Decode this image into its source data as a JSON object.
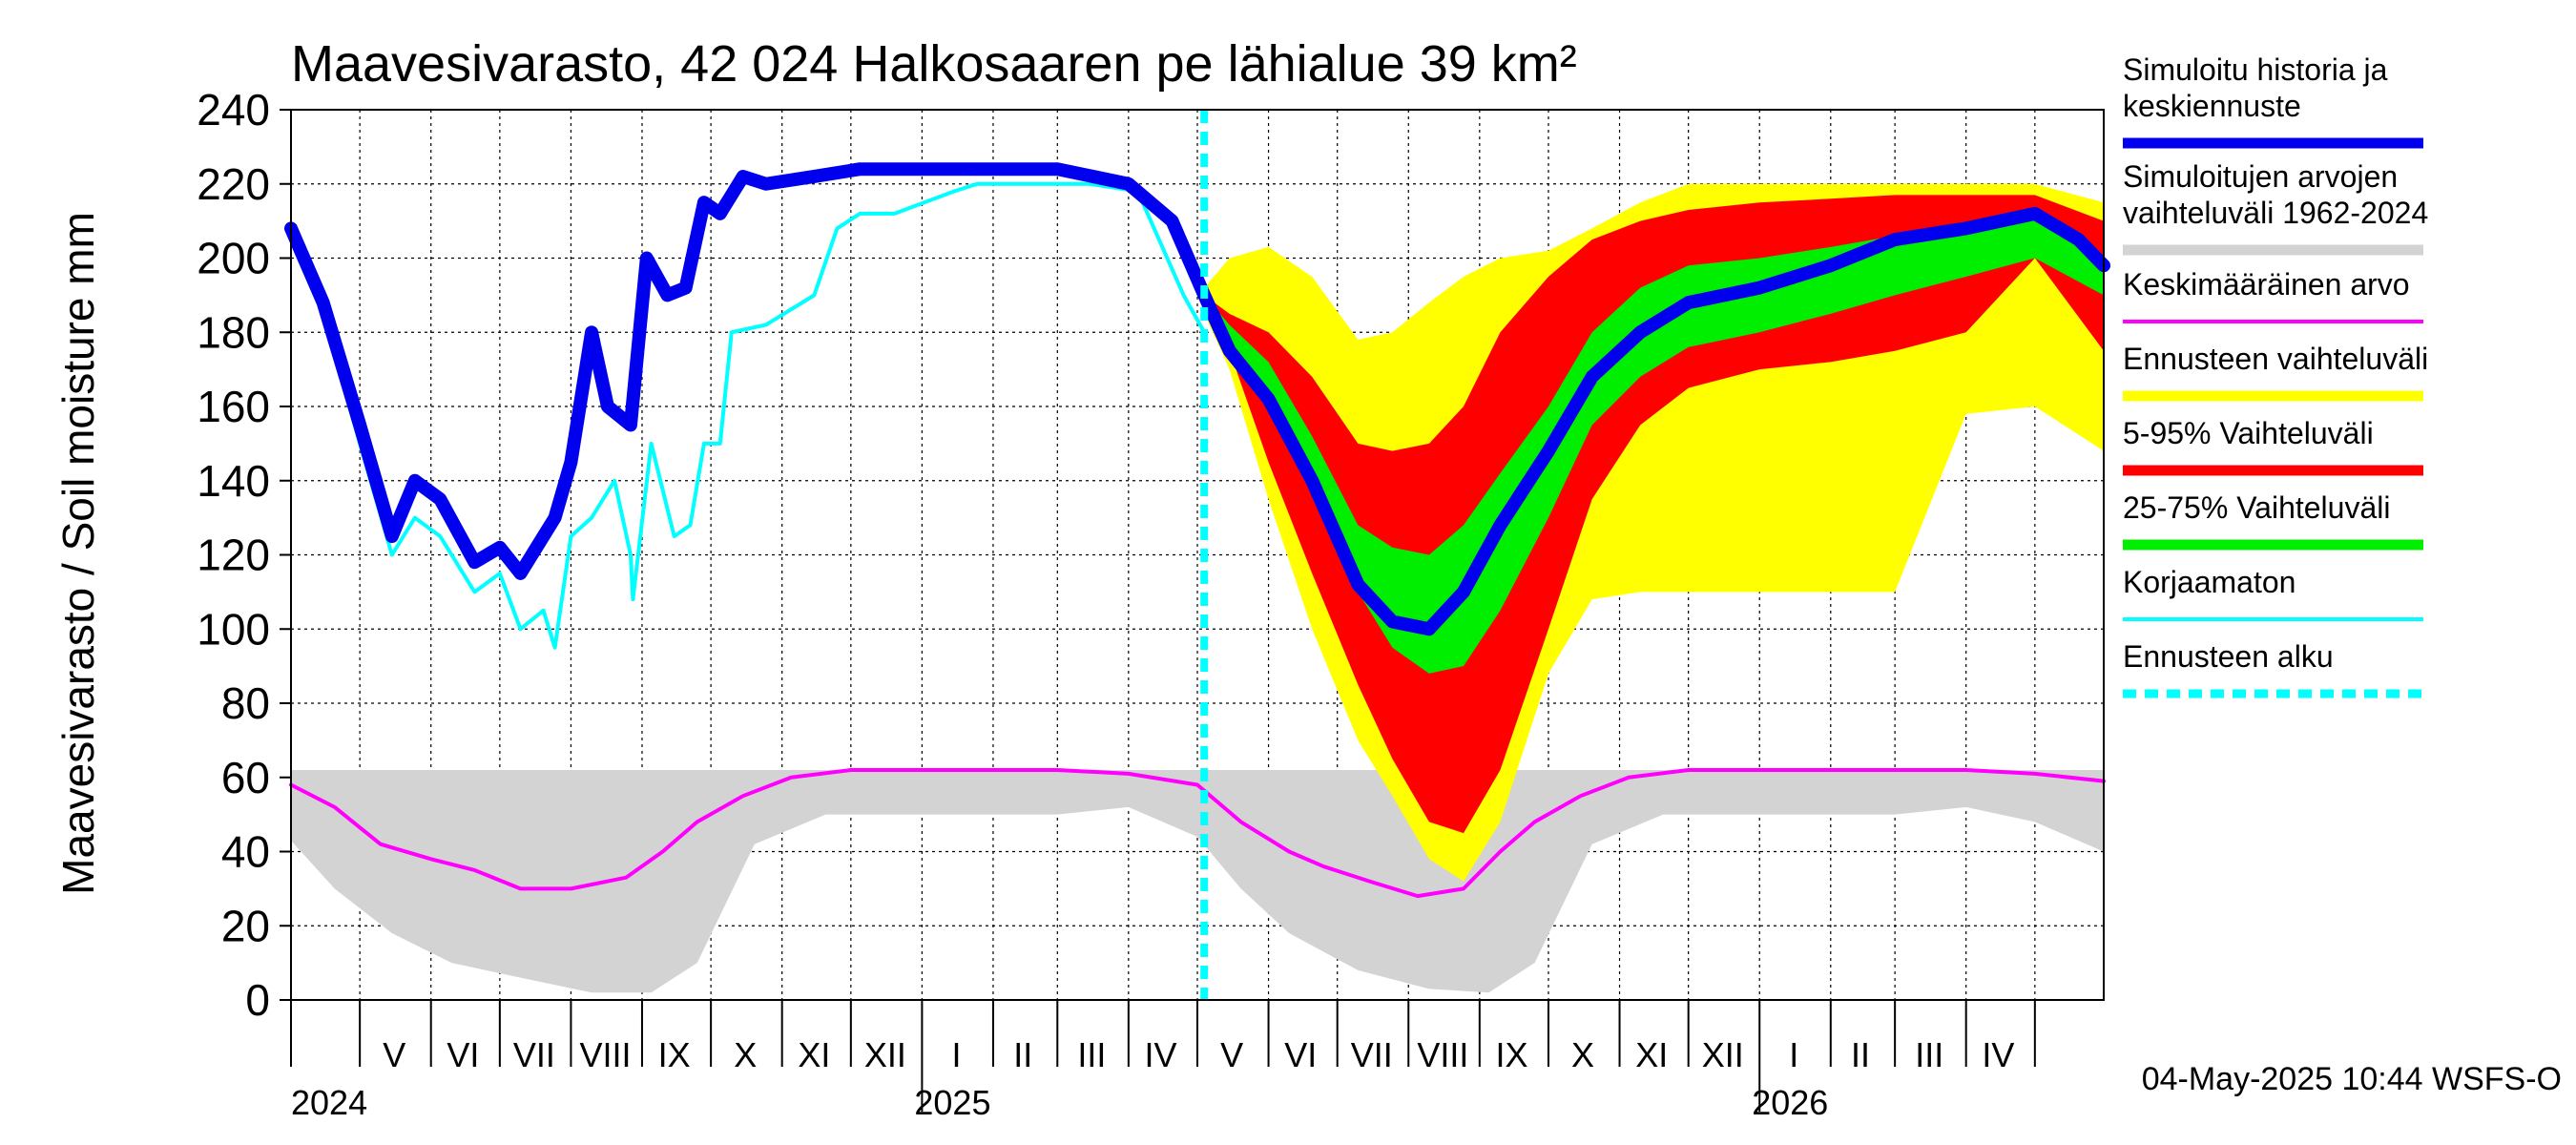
{
  "chart_data": {
    "type": "area",
    "title": "Maavesivarasto, 42 024 Halkosaaren pe lähialue 39 km²",
    "ylabel": "Maavesivarasto / Soil moisture   mm",
    "ylim": [
      0,
      240
    ],
    "yticks": [
      "0",
      "20",
      "40",
      "60",
      "80",
      "100",
      "120",
      "140",
      "160",
      "180",
      "200",
      "220",
      "240"
    ],
    "xlim": [
      "2024-04-01",
      "2026-05-31"
    ],
    "grid": true,
    "forecast_start": "2025-05-04",
    "month_labels": [
      {
        "label": "V",
        "date": "2024-05-16"
      },
      {
        "label": "VI",
        "date": "2024-06-15"
      },
      {
        "label": "VII",
        "date": "2024-07-16"
      },
      {
        "label": "VIII",
        "date": "2024-08-16"
      },
      {
        "label": "IX",
        "date": "2024-09-15"
      },
      {
        "label": "X",
        "date": "2024-10-16"
      },
      {
        "label": "XI",
        "date": "2024-11-15"
      },
      {
        "label": "XII",
        "date": "2024-12-16"
      },
      {
        "label": "I",
        "date": "2025-01-16"
      },
      {
        "label": "II",
        "date": "2025-02-14"
      },
      {
        "label": "III",
        "date": "2025-03-16"
      },
      {
        "label": "IV",
        "date": "2025-04-15"
      },
      {
        "label": "V",
        "date": "2025-05-16"
      },
      {
        "label": "VI",
        "date": "2025-06-15"
      },
      {
        "label": "VII",
        "date": "2025-07-16"
      },
      {
        "label": "VIII",
        "date": "2025-08-16"
      },
      {
        "label": "IX",
        "date": "2025-09-15"
      },
      {
        "label": "X",
        "date": "2025-10-16"
      },
      {
        "label": "XI",
        "date": "2025-11-15"
      },
      {
        "label": "XII",
        "date": "2025-12-16"
      },
      {
        "label": "I",
        "date": "2026-01-16"
      },
      {
        "label": "II",
        "date": "2026-02-14"
      },
      {
        "label": "III",
        "date": "2026-03-16"
      },
      {
        "label": "IV",
        "date": "2026-04-15"
      }
    ],
    "year_labels": [
      {
        "label": "2024",
        "date": "2024-04-01"
      },
      {
        "label": "2025",
        "date": "2025-01-01"
      },
      {
        "label": "2026",
        "date": "2026-01-01"
      }
    ],
    "series": [
      {
        "name": "Simuloitujen arvojen vaihteluväli 1962-2024",
        "kind": "band",
        "color": "#d3d3d3",
        "x": [
          "2024-04-01",
          "2024-04-20",
          "2024-05-15",
          "2024-06-10",
          "2024-07-10",
          "2024-08-10",
          "2024-09-05",
          "2024-09-25",
          "2024-10-20",
          "2024-11-20",
          "2025-01-01",
          "2025-03-01",
          "2025-04-01",
          "2025-05-01",
          "2025-05-20",
          "2025-06-10",
          "2025-07-10",
          "2025-08-10",
          "2025-09-05",
          "2025-09-25",
          "2025-10-20",
          "2025-11-20",
          "2026-01-01",
          "2026-03-01",
          "2026-04-01",
          "2026-05-01",
          "2026-05-31"
        ],
        "lower": [
          43,
          30,
          18,
          10,
          6,
          2,
          2,
          10,
          42,
          50,
          50,
          50,
          52,
          44,
          30,
          18,
          8,
          3,
          2,
          10,
          42,
          50,
          50,
          50,
          52,
          48,
          40
        ],
        "upper": [
          62,
          62,
          62,
          62,
          62,
          62,
          62,
          62,
          62,
          62,
          62,
          62,
          62,
          62,
          62,
          62,
          62,
          62,
          62,
          62,
          62,
          62,
          62,
          62,
          62,
          62,
          62
        ]
      },
      {
        "name": "Ennusteen vaihteluväli",
        "kind": "band",
        "color": "#ffff00",
        "x": [
          "2025-05-04",
          "2025-05-15",
          "2025-06-01",
          "2025-06-20",
          "2025-07-10",
          "2025-07-25",
          "2025-08-10",
          "2025-08-25",
          "2025-09-10",
          "2025-10-01",
          "2025-10-20",
          "2025-11-10",
          "2025-12-01",
          "2026-01-01",
          "2026-02-01",
          "2026-03-01",
          "2026-04-01",
          "2026-05-01",
          "2026-05-31"
        ],
        "lower": [
          185,
          170,
          135,
          100,
          70,
          55,
          38,
          32,
          48,
          88,
          108,
          110,
          110,
          110,
          110,
          110,
          158,
          160,
          148
        ],
        "upper": [
          192,
          200,
          203,
          195,
          178,
          180,
          188,
          195,
          200,
          202,
          208,
          215,
          220,
          220,
          220,
          220,
          220,
          220,
          215
        ]
      },
      {
        "name": "5-95% Vaihteluväli",
        "kind": "band",
        "color": "#ff0000",
        "x": [
          "2025-05-04",
          "2025-05-15",
          "2025-06-01",
          "2025-06-20",
          "2025-07-10",
          "2025-07-25",
          "2025-08-10",
          "2025-08-25",
          "2025-09-10",
          "2025-10-01",
          "2025-10-20",
          "2025-11-10",
          "2025-12-01",
          "2026-01-01",
          "2026-02-01",
          "2026-03-01",
          "2026-04-01",
          "2026-05-01",
          "2026-05-31"
        ],
        "lower": [
          188,
          175,
          145,
          115,
          85,
          65,
          48,
          45,
          62,
          100,
          135,
          155,
          165,
          170,
          172,
          175,
          180,
          200,
          175
        ],
        "upper": [
          190,
          185,
          180,
          168,
          150,
          148,
          150,
          160,
          180,
          195,
          205,
          210,
          213,
          215,
          216,
          217,
          217,
          217,
          210
        ]
      },
      {
        "name": "25-75% Vaihteluväli",
        "kind": "band",
        "color": "#00ee00",
        "x": [
          "2025-05-04",
          "2025-05-15",
          "2025-06-01",
          "2025-06-20",
          "2025-07-10",
          "2025-07-25",
          "2025-08-10",
          "2025-08-25",
          "2025-09-10",
          "2025-10-01",
          "2025-10-20",
          "2025-11-10",
          "2025-12-01",
          "2026-01-01",
          "2026-02-01",
          "2026-03-01",
          "2026-04-01",
          "2026-05-01",
          "2026-05-31"
        ],
        "lower": [
          189,
          178,
          162,
          138,
          110,
          95,
          88,
          90,
          105,
          130,
          155,
          168,
          176,
          180,
          185,
          190,
          195,
          200,
          190
        ],
        "upper": [
          190,
          182,
          172,
          152,
          128,
          122,
          120,
          128,
          142,
          160,
          180,
          192,
          198,
          200,
          203,
          206,
          208,
          212,
          200
        ]
      },
      {
        "name": "Korjaamaton",
        "kind": "line",
        "color": "#00ffff",
        "x": [
          "2024-04-01",
          "2024-04-15",
          "2024-05-01",
          "2024-05-15",
          "2024-05-25",
          "2024-06-05",
          "2024-06-20",
          "2024-07-01",
          "2024-07-10",
          "2024-07-20",
          "2024-07-25",
          "2024-08-01",
          "2024-08-10",
          "2024-08-20",
          "2024-08-27",
          "2024-08-28",
          "2024-09-05",
          "2024-09-15",
          "2024-09-22",
          "2024-09-28",
          "2024-10-05",
          "2024-10-10",
          "2024-10-25",
          "2024-11-15",
          "2024-11-25",
          "2024-12-05",
          "2024-12-20",
          "2025-01-15",
          "2025-01-25",
          "2025-02-15",
          "2025-03-15",
          "2025-04-05",
          "2025-04-25",
          "2025-05-04"
        ],
        "y": [
          208,
          185,
          150,
          120,
          130,
          125,
          110,
          115,
          100,
          105,
          95,
          125,
          130,
          140,
          120,
          108,
          150,
          125,
          128,
          150,
          150,
          180,
          182,
          190,
          208,
          212,
          212,
          218,
          220,
          220,
          220,
          218,
          190,
          180
        ]
      },
      {
        "name": "Keskimääräinen arvo",
        "kind": "line",
        "color": "#ff00ff",
        "x": [
          "2024-04-01",
          "2024-04-20",
          "2024-05-10",
          "2024-06-01",
          "2024-06-20",
          "2024-07-10",
          "2024-08-01",
          "2024-08-25",
          "2024-09-10",
          "2024-09-25",
          "2024-10-15",
          "2024-11-05",
          "2024-12-01",
          "2025-01-01",
          "2025-02-01",
          "2025-03-01",
          "2025-04-01",
          "2025-05-01",
          "2025-05-20",
          "2025-06-10",
          "2025-06-25",
          "2025-07-15",
          "2025-08-05",
          "2025-08-25",
          "2025-09-10",
          "2025-09-25",
          "2025-10-15",
          "2025-11-05",
          "2025-12-01",
          "2026-01-01",
          "2026-02-01",
          "2026-03-01",
          "2026-04-01",
          "2026-05-01",
          "2026-05-31"
        ],
        "y": [
          58,
          52,
          42,
          38,
          35,
          30,
          30,
          33,
          40,
          48,
          55,
          60,
          62,
          62,
          62,
          62,
          61,
          58,
          48,
          40,
          36,
          32,
          28,
          30,
          40,
          48,
          55,
          60,
          62,
          62,
          62,
          62,
          62,
          61,
          59
        ]
      },
      {
        "name": "Simuloitu historia ja keskiennuste",
        "kind": "line",
        "color": "#0000ee",
        "x": [
          "2024-04-01",
          "2024-04-15",
          "2024-05-01",
          "2024-05-15",
          "2024-05-25",
          "2024-06-05",
          "2024-06-20",
          "2024-07-01",
          "2024-07-10",
          "2024-07-20",
          "2024-07-25",
          "2024-08-01",
          "2024-08-10",
          "2024-08-17",
          "2024-08-27",
          "2024-09-03",
          "2024-09-12",
          "2024-09-20",
          "2024-09-28",
          "2024-10-05",
          "2024-10-15",
          "2024-10-25",
          "2024-11-15",
          "2024-12-05",
          "2025-01-01",
          "2025-02-01",
          "2025-03-01",
          "2025-04-01",
          "2025-04-20",
          "2025-05-04",
          "2025-05-15",
          "2025-06-01",
          "2025-06-20",
          "2025-07-10",
          "2025-07-25",
          "2025-08-10",
          "2025-08-25",
          "2025-09-10",
          "2025-10-01",
          "2025-10-20",
          "2025-11-10",
          "2025-12-01",
          "2026-01-01",
          "2026-02-01",
          "2026-03-01",
          "2026-04-01",
          "2026-05-01",
          "2026-05-20",
          "2026-05-31"
        ],
        "y": [
          208,
          188,
          155,
          125,
          140,
          135,
          118,
          122,
          115,
          125,
          130,
          145,
          180,
          160,
          155,
          200,
          190,
          192,
          215,
          212,
          222,
          220,
          222,
          224,
          224,
          224,
          224,
          220,
          210,
          190,
          175,
          162,
          140,
          112,
          102,
          100,
          110,
          128,
          148,
          168,
          180,
          188,
          192,
          198,
          205,
          208,
          212,
          205,
          198
        ]
      }
    ],
    "legend": {
      "placement": "right",
      "entries": [
        {
          "label": "Simuloitu historia ja keskiennuste",
          "color": "#0000ee",
          "style": "solid-thick"
        },
        {
          "label": "Simuloitujen arvojen vaihteluväli 1962-2024",
          "color": "#d3d3d3",
          "style": "solid-thick"
        },
        {
          "label": "Keskimääräinen arvo",
          "color": "#ff00ff",
          "style": "solid-thin"
        },
        {
          "label": "Ennusteen vaihteluväli",
          "color": "#ffff00",
          "style": "solid-thick"
        },
        {
          "label": "5-95% Vaihteluväli",
          "color": "#ff0000",
          "style": "solid-thick"
        },
        {
          "label": "25-75% Vaihteluväli",
          "color": "#00ee00",
          "style": "solid-thick"
        },
        {
          "label": "Korjaamaton",
          "color": "#00ffff",
          "style": "solid-thin"
        },
        {
          "label": "Ennusteen alku",
          "color": "#00ffff",
          "style": "dashed"
        }
      ]
    },
    "footer": "04-May-2025 10:44 WSFS-O"
  }
}
